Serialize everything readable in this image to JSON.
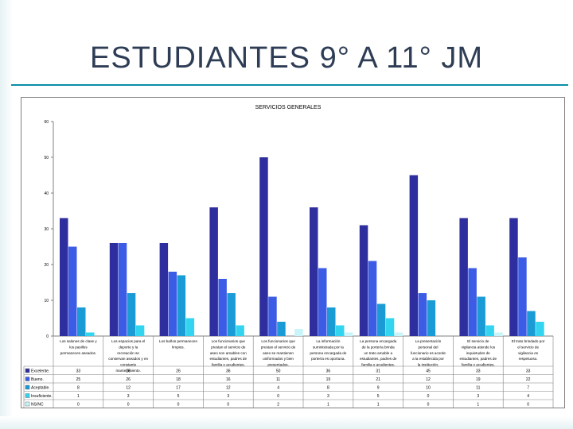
{
  "slide": {
    "title": "ESTUDIANTES 9° A  11° JM"
  },
  "colors": {
    "title_rule": "#0b8fa8",
    "series": [
      "#2e2e9e",
      "#3d5ce6",
      "#1a9bd6",
      "#33d4f0",
      "#c9f4fa"
    ]
  },
  "chart_data": {
    "type": "bar",
    "title": "SERVICIOS GENERALES",
    "ylim": [
      0,
      60
    ],
    "yticks": [
      0,
      10,
      20,
      30,
      40,
      50,
      60
    ],
    "grid": false,
    "legend": "data-table",
    "categories": [
      "Los salones de clase y los pasillos permanecen aseados.",
      "Los espacios para el deporte y la recreación se conservan aseados y en constante mantenimiento.",
      "Los baños permanecen limpios.",
      "Los funcionarios que prestan el servicio de aseo son amables con estudiantes, padres de familia o acudientes.",
      "Los funcionarios que prestan el servicio de aseo se mantienen uniformados y bien presentados.",
      "La información suministrada por la persona encargada de portería es oportuna.",
      "La persona encargada de la portería brinda un trato amable a estudiantes, padres de familia o acudientes.",
      "La presentación personal del funcionario es acorde a la establecida por la institución.",
      "El servicio de vigilancia atiende los inquietudes de estudiantes, padres de familia o acudientes.",
      "El trato brindado por el servicio de vigilancia es respetuoso."
    ],
    "series": [
      {
        "name": "Excelente.",
        "values": [
          33,
          26,
          26,
          36,
          50,
          36,
          31,
          45,
          33,
          33
        ]
      },
      {
        "name": "Bueno.",
        "values": [
          25,
          26,
          18,
          16,
          11,
          19,
          21,
          12,
          19,
          22
        ]
      },
      {
        "name": "Aceptable.",
        "values": [
          8,
          12,
          17,
          12,
          4,
          8,
          9,
          10,
          11,
          7
        ]
      },
      {
        "name": "Insuficiente.",
        "values": [
          1,
          3,
          5,
          3,
          0,
          3,
          5,
          0,
          3,
          4
        ]
      },
      {
        "name": "NS/NC",
        "values": [
          0,
          0,
          0,
          0,
          2,
          1,
          1,
          0,
          1,
          0
        ]
      }
    ]
  }
}
